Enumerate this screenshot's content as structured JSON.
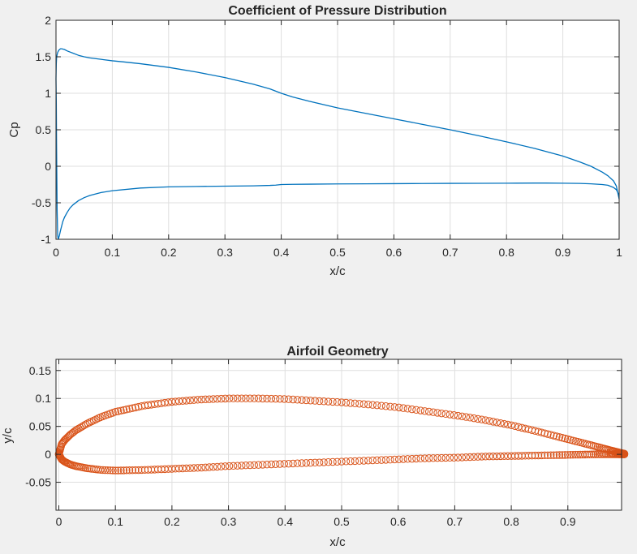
{
  "figure": {
    "background": "#f0f0f0"
  },
  "chart_data": [
    {
      "type": "line",
      "title": "Coefficient of Pressure Distribution",
      "xlabel": "x/c",
      "ylabel": "Cp",
      "xlim": [
        0,
        1
      ],
      "ylim": [
        -1,
        2
      ],
      "xticks": [
        0,
        0.1,
        0.2,
        0.3,
        0.4,
        0.5,
        0.6,
        0.7,
        0.8,
        0.9,
        1
      ],
      "xtick_labels": [
        "0",
        "0.1",
        "0.2",
        "0.3",
        "0.4",
        "0.5",
        "0.6",
        "0.7",
        "0.8",
        "0.9",
        "1"
      ],
      "yticks": [
        -1,
        -0.5,
        0,
        0.5,
        1,
        1.5,
        2
      ],
      "ytick_labels": [
        "-1",
        "-0.5",
        "0",
        "0.5",
        "1",
        "1.5",
        "2"
      ],
      "grid": true,
      "color": "#0072bd",
      "x": [
        1,
        0.999,
        0.995,
        0.99,
        0.98,
        0.97,
        0.95,
        0.93,
        0.9,
        0.87,
        0.85,
        0.8,
        0.75,
        0.7,
        0.65,
        0.6,
        0.55,
        0.5,
        0.45,
        0.42,
        0.4,
        0.39,
        0.38,
        0.35,
        0.3,
        0.25,
        0.2,
        0.15,
        0.1,
        0.08,
        0.06,
        0.05,
        0.04,
        0.03,
        0.025,
        0.02,
        0.015,
        0.012,
        0.01,
        0.008,
        0.006,
        0.004,
        0.003,
        0.002,
        0.001,
        0.0005,
        0,
        0.0005,
        0.001,
        0.002,
        0.003,
        0.005,
        0.008,
        0.01,
        0.015,
        0.02,
        0.03,
        0.04,
        0.05,
        0.06,
        0.07,
        0.08,
        0.1,
        0.12,
        0.15,
        0.2,
        0.25,
        0.3,
        0.35,
        0.38,
        0.4,
        0.42,
        0.45,
        0.5,
        0.55,
        0.6,
        0.65,
        0.7,
        0.75,
        0.8,
        0.85,
        0.9,
        0.93,
        0.95,
        0.97,
        0.98,
        0.99,
        0.995,
        1
      ],
      "y": [
        -0.45,
        -0.38,
        -0.32,
        -0.29,
        -0.26,
        -0.25,
        -0.24,
        -0.235,
        -0.232,
        -0.23,
        -0.23,
        -0.232,
        -0.233,
        -0.234,
        -0.236,
        -0.238,
        -0.24,
        -0.242,
        -0.245,
        -0.247,
        -0.25,
        -0.258,
        -0.262,
        -0.268,
        -0.272,
        -0.276,
        -0.282,
        -0.298,
        -0.335,
        -0.36,
        -0.4,
        -0.43,
        -0.47,
        -0.53,
        -0.57,
        -0.63,
        -0.7,
        -0.76,
        -0.82,
        -0.88,
        -0.95,
        -1.0,
        -0.95,
        -0.6,
        0.3,
        0.9,
        1.2,
        1.4,
        1.48,
        1.53,
        1.56,
        1.59,
        1.61,
        1.61,
        1.6,
        1.58,
        1.55,
        1.52,
        1.5,
        1.485,
        1.475,
        1.465,
        1.445,
        1.43,
        1.405,
        1.355,
        1.29,
        1.215,
        1.125,
        1.06,
        1.0,
        0.95,
        0.89,
        0.8,
        0.725,
        0.65,
        0.575,
        0.5,
        0.42,
        0.335,
        0.245,
        0.14,
        0.06,
        0.0,
        -0.08,
        -0.13,
        -0.2,
        -0.27,
        -0.45
      ]
    },
    {
      "type": "scatter",
      "title": "Airfoil Geometry",
      "xlabel": "x/c",
      "ylabel": "y/c",
      "xlim": [
        -0.005,
        0.995
      ],
      "ylim": [
        -0.1,
        0.17
      ],
      "xticks": [
        0,
        0.1,
        0.2,
        0.3,
        0.4,
        0.5,
        0.6,
        0.7,
        0.8,
        0.9
      ],
      "xtick_labels": [
        "0",
        "0.1",
        "0.2",
        "0.3",
        "0.4",
        "0.5",
        "0.6",
        "0.7",
        "0.8",
        "0.9"
      ],
      "yticks": [
        -0.05,
        0,
        0.05,
        0.1,
        0.15
      ],
      "ytick_labels": [
        "-0.05",
        "0",
        "0.05",
        "0.1",
        "0.15"
      ],
      "grid": true,
      "marker": "circle",
      "color": "#d95319",
      "outline": {
        "upper": {
          "x": [
            0,
            0.005,
            0.01,
            0.02,
            0.03,
            0.05,
            0.075,
            0.1,
            0.15,
            0.2,
            0.25,
            0.3,
            0.35,
            0.4,
            0.45,
            0.5,
            0.55,
            0.6,
            0.65,
            0.7,
            0.75,
            0.8,
            0.85,
            0.9,
            0.95,
            0.98,
            1.0
          ],
          "y": [
            0,
            0.018,
            0.025,
            0.035,
            0.043,
            0.055,
            0.067,
            0.076,
            0.087,
            0.094,
            0.098,
            0.1,
            0.1,
            0.099,
            0.096,
            0.093,
            0.089,
            0.084,
            0.077,
            0.07,
            0.062,
            0.052,
            0.04,
            0.027,
            0.014,
            0.006,
            0.001
          ]
        },
        "lower": {
          "x": [
            0,
            0.005,
            0.01,
            0.02,
            0.03,
            0.05,
            0.075,
            0.1,
            0.15,
            0.2,
            0.25,
            0.3,
            0.35,
            0.4,
            0.45,
            0.5,
            0.55,
            0.6,
            0.65,
            0.7,
            0.75,
            0.8,
            0.85,
            0.9,
            0.95,
            0.98,
            1.0
          ],
          "y": [
            0,
            -0.009,
            -0.013,
            -0.018,
            -0.021,
            -0.025,
            -0.028,
            -0.029,
            -0.028,
            -0.026,
            -0.024,
            -0.021,
            -0.019,
            -0.017,
            -0.015,
            -0.013,
            -0.011,
            -0.009,
            -0.007,
            -0.006,
            -0.004,
            -0.003,
            -0.002,
            -0.001,
            0,
            0,
            0
          ]
        }
      }
    }
  ]
}
